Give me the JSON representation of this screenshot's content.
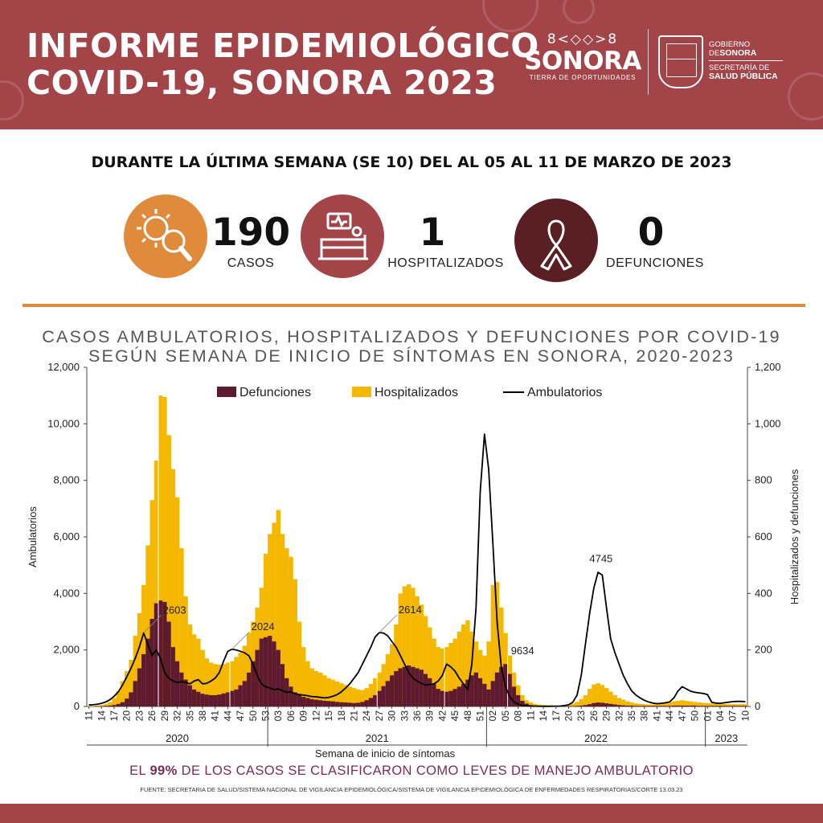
{
  "header": {
    "title_line1": "INFORME EPIDEMIOLÓGICO",
    "title_line2": "COVID-19, SONORA 2023",
    "logo_pattern": "8<◇◇>8",
    "logo_name": "SONORA",
    "logo_tagline": "TIERRA DE OPORTUNIDADES",
    "gov_line1": "GOBIERNO",
    "gov_line2_pre": "DE",
    "gov_line2": "SONORA",
    "gov_line3": "SECRETARÍA DE",
    "gov_line4": "SALUD PÚBLICA"
  },
  "headline": "DURANTE LA ÚLTIMA SEMANA (SE 10) DEL AL 05 AL 11 DE MARZO DE 2023",
  "stats": [
    {
      "value": "190",
      "label": "CASOS",
      "icon": "virus-magnifier-icon",
      "color": "#e08a3c"
    },
    {
      "value": "1",
      "label": "HOSPITALIZADOS",
      "icon": "hospital-bed-icon",
      "color": "#a34448"
    },
    {
      "value": "0",
      "label": "DEFUNCIONES",
      "icon": "ribbon-icon",
      "color": "#5a1f22"
    }
  ],
  "colors": {
    "defunciones": "#5e1a2e",
    "hospitalizados": "#f5b800",
    "ambulatorios": "#000000",
    "brand": "#a34448",
    "accent": "#e08a3c"
  },
  "chart_data": {
    "type": "bar",
    "title_line1": "CASOS AMBULATORIOS, HOSPITALIZADOS Y DEFUNCIONES POR COVID-19",
    "title_line2": "SEGÚN SEMANA DE INICIO DE SÍNTOMAS EN SONORA, 2020-2023",
    "xlabel": "Semana de inicio de síntomas",
    "ylabel_left": "Ambulatorios",
    "ylabel_right": "Hospitalizados y defunciones",
    "ylim_left": [
      0,
      12000
    ],
    "ylim_right": [
      0,
      1200
    ],
    "yticks_left": [
      "0",
      "2,000",
      "4,000",
      "6,000",
      "8,000",
      "10,000",
      "12,000"
    ],
    "yticks_right": [
      "0",
      "200",
      "400",
      "600",
      "800",
      "1,000",
      "1,200"
    ],
    "xticks": [
      "11",
      "14",
      "17",
      "20",
      "23",
      "26",
      "29",
      "32",
      "35",
      "38",
      "41",
      "44",
      "47",
      "50",
      "53",
      "03",
      "06",
      "09",
      "12",
      "15",
      "18",
      "21",
      "24",
      "27",
      "30",
      "33",
      "36",
      "39",
      "42",
      "45",
      "48",
      "51",
      "02",
      "05",
      "08",
      "11",
      "14",
      "17",
      "20",
      "23",
      "26",
      "29",
      "32",
      "35",
      "38",
      "41",
      "44",
      "47",
      "50",
      "01",
      "04",
      "07",
      "10"
    ],
    "years": [
      {
        "label": "2020",
        "start": 0,
        "end": 43
      },
      {
        "label": "2021",
        "start": 43,
        "end": 95
      },
      {
        "label": "2022",
        "start": 95,
        "end": 147
      },
      {
        "label": "2023",
        "start": 147,
        "end": 157
      }
    ],
    "legend": [
      "Defunciones",
      "Hospitalizados",
      "Ambulatorios"
    ],
    "legend_position": "top-center",
    "week_start": "2020 SE 11",
    "weeks": 157,
    "series": [
      {
        "name": "Hospitalizados",
        "axis": "right",
        "values": [
          1,
          2,
          3,
          5,
          8,
          15,
          30,
          55,
          90,
          125,
          165,
          250,
          330,
          430,
          570,
          730,
          870,
          1100,
          1095,
          960,
          840,
          740,
          560,
          390,
          290,
          255,
          240,
          200,
          170,
          155,
          150,
          148,
          150,
          155,
          160,
          175,
          190,
          215,
          260,
          300,
          350,
          420,
          540,
          610,
          650,
          695,
          610,
          560,
          530,
          450,
          300,
          210,
          160,
          135,
          125,
          120,
          110,
          100,
          95,
          88,
          82,
          76,
          70,
          65,
          60,
          58,
          65,
          80,
          100,
          120,
          150,
          185,
          220,
          290,
          400,
          425,
          432,
          420,
          390,
          360,
          320,
          280,
          240,
          210,
          205,
          210,
          225,
          240,
          265,
          290,
          305,
          265,
          230,
          200,
          180,
          230,
          430,
          440,
          350,
          260,
          180,
          120,
          75,
          40,
          22,
          14,
          9,
          6,
          5,
          4,
          3,
          3,
          3,
          4,
          6,
          10,
          16,
          26,
          40,
          62,
          78,
          82,
          76,
          65,
          52,
          40,
          30,
          24,
          18,
          14,
          11,
          9,
          8,
          7,
          7,
          8,
          10,
          12,
          15,
          18,
          20,
          22,
          20,
          18,
          16,
          14,
          13,
          12,
          11,
          10,
          9,
          9,
          8,
          8,
          8,
          8,
          8
        ],
        "note": "stacked total height (hospitalizados top of stack)"
      },
      {
        "name": "Defunciones",
        "axis": "right",
        "values": [
          0,
          0,
          1,
          1,
          2,
          3,
          5,
          9,
          15,
          28,
          50,
          90,
          135,
          185,
          240,
          310,
          365,
          375,
          370,
          300,
          210,
          160,
          120,
          95,
          75,
          60,
          52,
          45,
          42,
          40,
          40,
          42,
          46,
          50,
          55,
          60,
          75,
          90,
          120,
          160,
          200,
          240,
          245,
          250,
          230,
          200,
          150,
          100,
          70,
          50,
          40,
          34,
          30,
          26,
          24,
          22,
          20,
          19,
          18,
          16,
          15,
          14,
          13,
          12,
          13,
          16,
          22,
          30,
          40,
          55,
          72,
          90,
          110,
          125,
          135,
          140,
          145,
          140,
          135,
          130,
          115,
          100,
          80,
          62,
          55,
          52,
          55,
          62,
          70,
          80,
          95,
          110,
          120,
          100,
          80,
          60,
          90,
          120,
          140,
          150,
          115,
          70,
          40,
          20,
          10,
          5,
          3,
          2,
          1,
          1,
          1,
          1,
          1,
          1,
          1,
          1,
          2,
          3,
          5,
          8,
          12,
          14,
          13,
          11,
          9,
          7,
          5,
          4,
          3,
          3,
          2,
          2,
          2,
          2,
          2,
          2,
          2,
          2,
          2,
          3,
          3,
          3,
          3,
          3,
          3,
          2,
          2,
          2,
          2,
          2,
          2,
          2,
          2,
          2,
          2,
          2,
          2
        ]
      },
      {
        "name": "Ambulatorios",
        "axis": "left",
        "type": "line",
        "values": [
          50,
          60,
          80,
          110,
          160,
          240,
          360,
          520,
          760,
          1050,
          1350,
          1700,
          2100,
          2603,
          2200,
          1800,
          2000,
          1700,
          1200,
          1000,
          900,
          850,
          880,
          850,
          800,
          900,
          950,
          800,
          820,
          900,
          1000,
          1200,
          1600,
          1950,
          2024,
          2000,
          1950,
          1900,
          1800,
          1500,
          1100,
          800,
          700,
          650,
          600,
          620,
          560,
          500,
          520,
          450,
          420,
          400,
          380,
          350,
          340,
          320,
          300,
          320,
          360,
          420,
          520,
          650,
          800,
          1000,
          1200,
          1500,
          1800,
          2100,
          2450,
          2614,
          2600,
          2500,
          2300,
          2100,
          1800,
          1500,
          1200,
          1000,
          900,
          820,
          760,
          780,
          800,
          900,
          1100,
          1500,
          1400,
          1250,
          1000,
          800,
          600,
          1500,
          3500,
          7600,
          9634,
          8400,
          5800,
          3000,
          1400,
          700,
          350,
          160,
          80,
          40,
          25,
          15,
          10,
          8,
          6,
          6,
          8,
          10,
          15,
          30,
          60,
          150,
          400,
          1100,
          2200,
          3300,
          4200,
          4745,
          4650,
          3500,
          2400,
          1900,
          1500,
          1100,
          800,
          550,
          400,
          300,
          220,
          160,
          120,
          100,
          110,
          130,
          160,
          300,
          550,
          700,
          620,
          540,
          500,
          480,
          460,
          420,
          150,
          120,
          110,
          130,
          150,
          170,
          180,
          180,
          170
        ]
      }
    ],
    "annotations": [
      {
        "label": "2603",
        "week": 13
      },
      {
        "label": "2024",
        "week": 34
      },
      {
        "label": "2614",
        "week": 69
      },
      {
        "label": "9634",
        "week": 98
      },
      {
        "label": "4745",
        "week": 122
      }
    ]
  },
  "footnote": {
    "pre": "EL ",
    "bold": "99%",
    "post": " DE LOS CASOS SE CLASIFICARON COMO LEVES DE MANEJO AMBULATORIO"
  },
  "source": "FUENTE: SECRETARIA DE SALUD/SISTEMA NACIONAL DE VIGILANCIA EPIDEMIOLÓGICA/SISTEMA DE VIGILANCIA EPIDEMIOLÓGICA DE ENFERMEDADES RESPIRATORIAS/CORTE 13.03.23"
}
